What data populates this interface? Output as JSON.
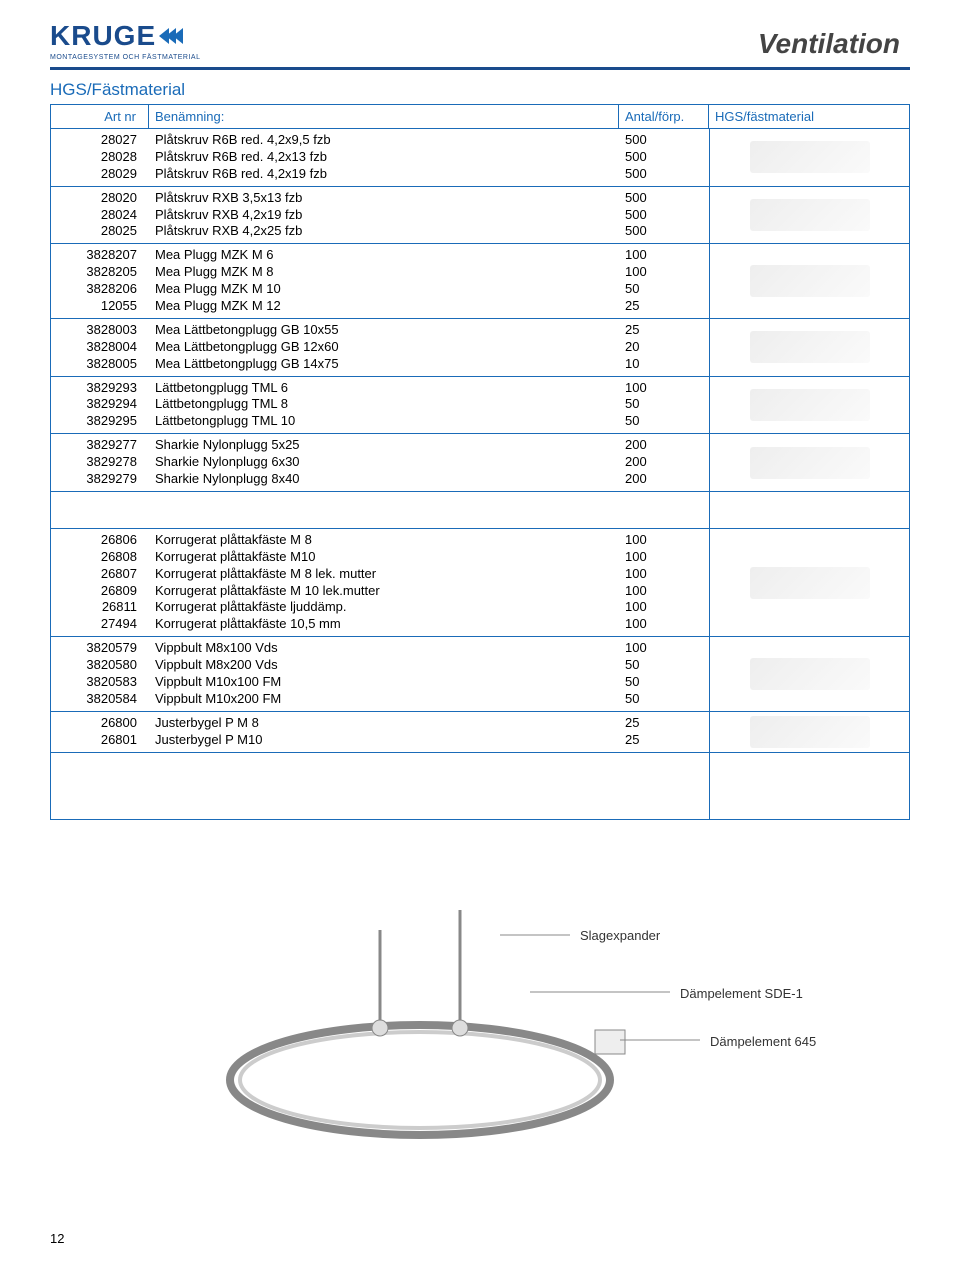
{
  "brand": {
    "name": "KRUGE",
    "subtitle": "MONTAGESYSTEM OCH FÄSTMATERIAL"
  },
  "page_title": "Ventilation",
  "section_title": "HGS/Fästmaterial",
  "columns": {
    "art": "Art nr",
    "name": "Benämning:",
    "qty": "Antal/förp.",
    "img": "HGS/fästmaterial"
  },
  "groups": [
    {
      "rows": [
        {
          "art": "28027",
          "name": "Plåtskruv R6B red. 4,2x9,5 fzb",
          "qty": "500"
        },
        {
          "art": "28028",
          "name": "Plåtskruv R6B red. 4,2x13 fzb",
          "qty": "500"
        },
        {
          "art": "28029",
          "name": "Plåtskruv R6B red. 4,2x19 fzb",
          "qty": "500"
        }
      ]
    },
    {
      "rows": [
        {
          "art": "28020",
          "name": "Plåtskruv RXB 3,5x13 fzb",
          "qty": "500"
        },
        {
          "art": "28024",
          "name": "Plåtskruv RXB 4,2x19 fzb",
          "qty": "500"
        },
        {
          "art": "28025",
          "name": "Plåtskruv RXB 4,2x25 fzb",
          "qty": "500"
        }
      ]
    },
    {
      "rows": [
        {
          "art": "3828207",
          "name": "Mea Plugg MZK M 6",
          "qty": "100"
        },
        {
          "art": "3828205",
          "name": "Mea Plugg MZK M 8",
          "qty": "100"
        },
        {
          "art": "3828206",
          "name": "Mea Plugg MZK M 10",
          "qty": "50"
        },
        {
          "art": "12055",
          "name": "Mea Plugg MZK M 12",
          "qty": "25"
        }
      ]
    },
    {
      "rows": [
        {
          "art": "3828003",
          "name": "Mea Lättbetongplugg GB 10x55",
          "qty": "25"
        },
        {
          "art": "3828004",
          "name": "Mea Lättbetongplugg GB 12x60",
          "qty": "20"
        },
        {
          "art": "3828005",
          "name": "Mea Lättbetongplugg GB 14x75",
          "qty": "10"
        }
      ]
    },
    {
      "rows": [
        {
          "art": "3829293",
          "name": "Lättbetongplugg TML 6",
          "qty": "100"
        },
        {
          "art": "3829294",
          "name": "Lättbetongplugg TML 8",
          "qty": "50"
        },
        {
          "art": "3829295",
          "name": "Lättbetongplugg TML 10",
          "qty": "50"
        }
      ]
    },
    {
      "rows": [
        {
          "art": "3829277",
          "name": "Sharkie Nylonplugg 5x25",
          "qty": "200"
        },
        {
          "art": "3829278",
          "name": "Sharkie Nylonplugg 6x30",
          "qty": "200"
        },
        {
          "art": "3829279",
          "name": "Sharkie Nylonplugg 8x40",
          "qty": "200"
        }
      ]
    },
    {
      "rows": [
        {
          "gap": true
        }
      ]
    },
    {
      "rows": [
        {
          "art": "26806",
          "name": "Korrugerat plåttakfäste M 8",
          "qty": "100"
        },
        {
          "art": "26808",
          "name": "Korrugerat plåttakfäste M10",
          "qty": "100"
        },
        {
          "art": "26807",
          "name": "Korrugerat plåttakfäste M 8 lek. mutter",
          "qty": "100"
        },
        {
          "art": "26809",
          "name": "Korrugerat plåttakfäste M 10 lek.mutter",
          "qty": "100"
        },
        {
          "art": "26811",
          "name": "Korrugerat plåttakfäste ljuddämp.",
          "qty": "100"
        },
        {
          "art": "27494",
          "name": "Korrugerat plåttakfäste 10,5 mm",
          "qty": "100"
        }
      ]
    },
    {
      "rows": [
        {
          "art": "3820579",
          "name": "Vippbult M8x100 Vds",
          "qty": "100"
        },
        {
          "art": "3820580",
          "name": "Vippbult M8x200 Vds",
          "qty": "50"
        },
        {
          "art": "3820583",
          "name": "Vippbult M10x100 FM",
          "qty": "50"
        },
        {
          "art": "3820584",
          "name": "Vippbult M10x200 FM",
          "qty": "50"
        }
      ]
    },
    {
      "rows": [
        {
          "art": "26800",
          "name": "Justerbygel P M 8",
          "qty": "25"
        },
        {
          "art": "26801",
          "name": "Justerbygel P M10",
          "qty": "25"
        }
      ]
    },
    {
      "rows": [
        {
          "gap": true
        },
        {
          "gap": true
        }
      ]
    }
  ],
  "diagram_labels": {
    "slagexpander": "Slagexpander",
    "sde1": "Dämpelement SDE-1",
    "d645": "Dämpelement 645"
  },
  "page_number": "12",
  "colors": {
    "accent": "#1a6bb8",
    "accent_dark": "#1a4b8c",
    "text": "#000000",
    "bg": "#ffffff"
  }
}
